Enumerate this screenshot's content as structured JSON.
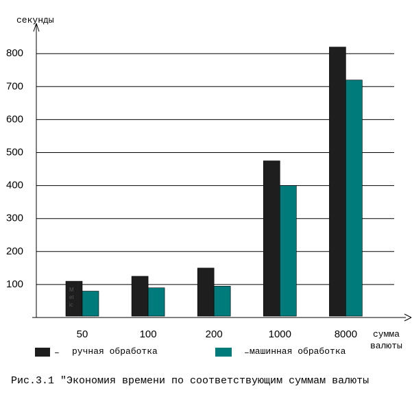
{
  "chart_data": {
    "type": "bar",
    "ylabel": "секунды",
    "xlabel": "сумма валюты",
    "xlabel_lines": [
      "сумма",
      "валюты"
    ],
    "categories": [
      "50",
      "100",
      "200",
      "1000",
      "8000"
    ],
    "series": [
      {
        "name": "ручная обработка",
        "values": [
          110,
          125,
          150,
          475,
          820
        ]
      },
      {
        "name": "машинная обработка",
        "values": [
          80,
          90,
          95,
          400,
          720
        ]
      }
    ],
    "yticks": [
      100,
      200,
      300,
      400,
      500,
      600,
      700,
      800
    ],
    "ylim": [
      0,
      880
    ],
    "grid": true,
    "legend_position": "bottom",
    "legend_prefix": "–",
    "bar_artifact_text": [
      "М",
      "et",
      "ic"
    ],
    "colors": {
      "series_1": "#1e1e1e",
      "series_2": "#007b7b",
      "grid": "#000000"
    }
  },
  "caption": "Рис.3.1 \"Экономия времени по соответствующим суммам валюты"
}
